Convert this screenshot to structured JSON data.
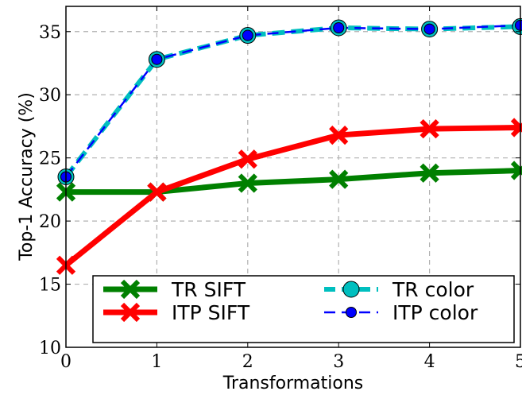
{
  "chart_data": {
    "type": "line",
    "xlabel": "Transformations",
    "ylabel": "Top-1 Accuracy (%)",
    "xlim": [
      0,
      5
    ],
    "ylim": [
      10,
      37
    ],
    "xticks": [
      "0",
      "1",
      "2",
      "3",
      "4",
      "5"
    ],
    "yticks": [
      "10",
      "15",
      "20",
      "25",
      "30",
      "35"
    ],
    "ytick_values": [
      10,
      15,
      20,
      25,
      30,
      35
    ],
    "grid": true,
    "legend_position": "lower-right",
    "x": [
      0,
      1,
      2,
      3,
      4,
      5
    ],
    "series": [
      {
        "name": "TR SIFT",
        "values": [
          22.3,
          22.3,
          23.0,
          23.3,
          23.8,
          24.0
        ],
        "color": "#008000",
        "marker": "x-thick",
        "style": "solid"
      },
      {
        "name": "ITP SIFT",
        "values": [
          16.5,
          22.3,
          24.9,
          26.8,
          27.3,
          27.4
        ],
        "color": "#ff0000",
        "marker": "x-thick",
        "style": "solid"
      },
      {
        "name": "TR color",
        "values": [
          23.5,
          32.8,
          34.7,
          35.3,
          35.2,
          35.4
        ],
        "color": "#00bfbf",
        "marker": "circle-large",
        "style": "dashed"
      },
      {
        "name": "ITP color",
        "values": [
          23.5,
          32.8,
          34.7,
          35.3,
          35.2,
          35.5
        ],
        "color": "#0000ff",
        "marker": "circle-small",
        "style": "dashed"
      }
    ]
  }
}
